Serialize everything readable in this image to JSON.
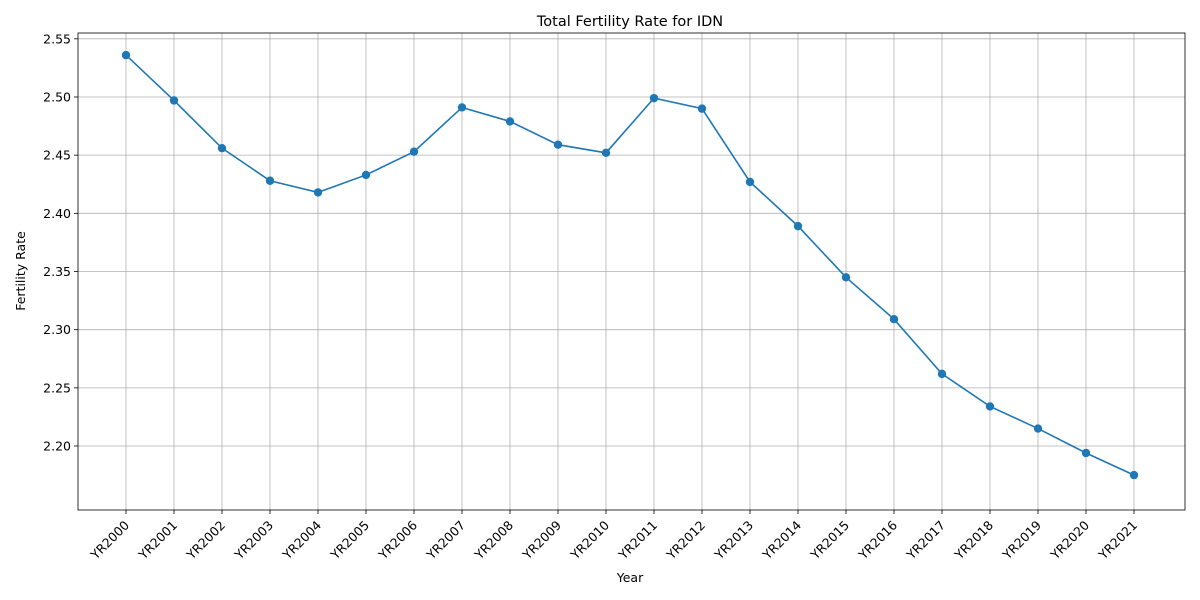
{
  "chart_data": {
    "type": "line",
    "title": "Total Fertility Rate for IDN",
    "xlabel": "Year",
    "ylabel": "Fertility Rate",
    "categories": [
      "YR2000",
      "YR2001",
      "YR2002",
      "YR2003",
      "YR2004",
      "YR2005",
      "YR2006",
      "YR2007",
      "YR2008",
      "YR2009",
      "YR2010",
      "YR2011",
      "YR2012",
      "YR2013",
      "YR2014",
      "YR2015",
      "YR2016",
      "YR2017",
      "YR2018",
      "YR2019",
      "YR2020",
      "YR2021"
    ],
    "series": [
      {
        "values": [
          2.536,
          2.497,
          2.456,
          2.428,
          2.418,
          2.433,
          2.453,
          2.491,
          2.479,
          2.459,
          2.452,
          2.499,
          2.49,
          2.427,
          2.389,
          2.345,
          2.309,
          2.262,
          2.234,
          2.215,
          2.194,
          2.175
        ],
        "color": "#1f77b4",
        "marker": "circle"
      }
    ],
    "ylim": [
      2.145,
      2.555
    ],
    "yticks": [
      "2.20",
      "2.25",
      "2.30",
      "2.35",
      "2.40",
      "2.45",
      "2.50",
      "2.55"
    ],
    "grid": true,
    "legend": false
  }
}
